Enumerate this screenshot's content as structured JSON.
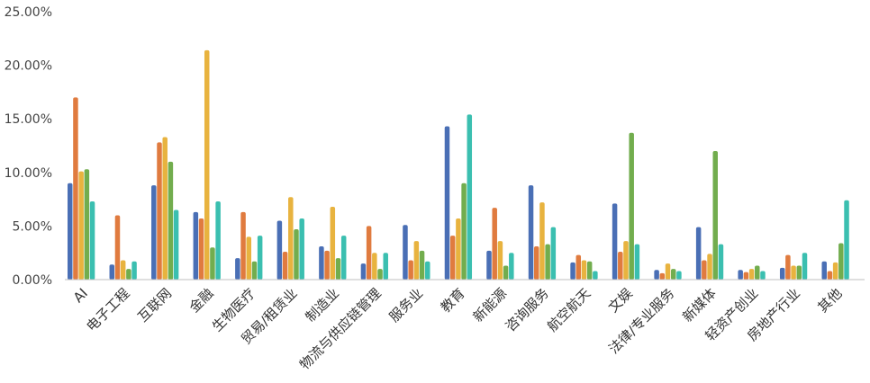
{
  "chart_data": {
    "type": "bar",
    "title": "",
    "xlabel": "",
    "ylabel": "",
    "ylim": [
      0,
      25
    ],
    "yticks": [
      "0.00%",
      "5.00%",
      "10.00%",
      "15.00%",
      "20.00%",
      "25.00%"
    ],
    "grid": false,
    "legend": "none",
    "categories": [
      "AI",
      "电子工程",
      "互联网",
      "金融",
      "生物医疗",
      "贸易/租赁业",
      "制造业",
      "物流与供应链管理",
      "服务业",
      "教育",
      "新能源",
      "咨询服务",
      "航空航天",
      "文娱",
      "法律/专业服务",
      "新媒体",
      "轻资产创业",
      "房地产行业",
      "其他"
    ],
    "series_colors": [
      "#4a6fb5",
      "#e07b3f",
      "#e8b33f",
      "#72ad4e",
      "#3bbfb0"
    ],
    "series": [
      {
        "values": [
          9.0,
          1.4,
          8.8,
          6.3,
          2.0,
          5.5,
          3.1,
          1.5,
          5.1,
          14.3,
          2.7,
          8.8,
          1.6,
          7.1,
          0.9,
          4.9,
          0.9,
          1.1,
          1.7
        ]
      },
      {
        "values": [
          17.0,
          6.0,
          12.8,
          5.7,
          6.3,
          2.6,
          2.7,
          5.0,
          1.8,
          4.1,
          6.7,
          3.1,
          2.3,
          2.6,
          0.6,
          1.8,
          0.7,
          2.3,
          0.8
        ]
      },
      {
        "values": [
          10.1,
          1.8,
          13.3,
          21.4,
          4.0,
          7.7,
          6.8,
          2.5,
          3.6,
          5.7,
          3.6,
          7.2,
          1.8,
          3.6,
          1.5,
          2.4,
          1.0,
          1.3,
          1.6
        ]
      },
      {
        "values": [
          10.3,
          1.0,
          11.0,
          3.0,
          1.7,
          4.7,
          2.0,
          1.0,
          2.7,
          9.0,
          1.3,
          3.3,
          1.7,
          13.7,
          1.0,
          12.0,
          1.3,
          1.3,
          3.4
        ]
      },
      {
        "values": [
          7.3,
          1.7,
          6.5,
          7.3,
          4.1,
          5.7,
          4.1,
          2.5,
          1.7,
          15.4,
          2.5,
          4.9,
          0.8,
          3.3,
          0.8,
          3.3,
          0.8,
          2.5,
          7.4
        ]
      }
    ]
  }
}
